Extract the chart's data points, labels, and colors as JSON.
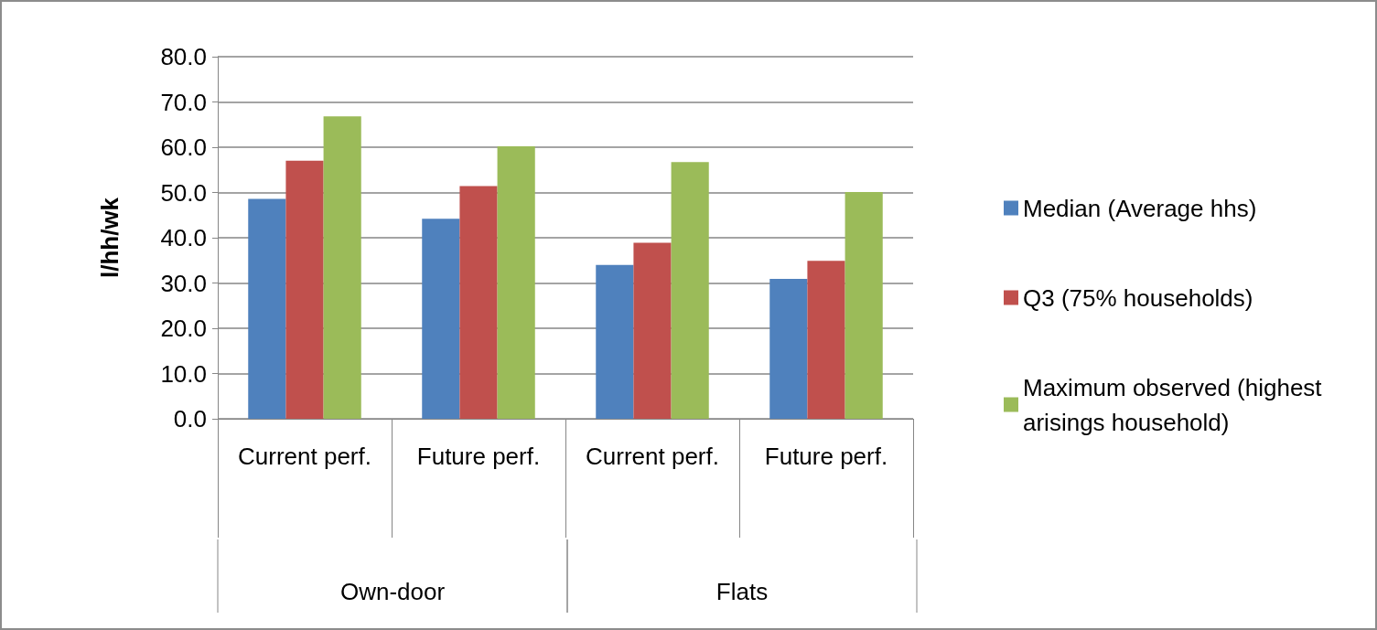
{
  "chart_data": {
    "type": "bar",
    "ylabel": "l/hh/wk",
    "categories": [
      "Current perf.",
      "Future perf.",
      "Current perf.",
      "Future perf."
    ],
    "annotations": [
      "Own-door",
      "Flats"
    ],
    "series": [
      {
        "name": "Median (Average hhs)",
        "color": "#4f81bd",
        "values": [
          48.6,
          44.2,
          34.0,
          30.9
        ]
      },
      {
        "name": "Q3 (75% households)",
        "color": "#c0504d",
        "values": [
          57.0,
          51.4,
          38.9,
          34.9
        ]
      },
      {
        "name": "Maximum observed (highest arisings household)",
        "color": "#9bbb59",
        "values": [
          66.8,
          60.2,
          56.7,
          50.1
        ]
      }
    ],
    "ylim": [
      0,
      80
    ],
    "yticks": [
      {
        "value": 0,
        "label": "0.0"
      },
      {
        "value": 10,
        "label": "10.0"
      },
      {
        "value": 20,
        "label": "20.0"
      },
      {
        "value": 30,
        "label": "30.0"
      },
      {
        "value": 40,
        "label": "40.0"
      },
      {
        "value": 50,
        "label": "50.0"
      },
      {
        "value": 60,
        "label": "60.0"
      },
      {
        "value": 70,
        "label": "70.0"
      },
      {
        "value": 80,
        "label": "80.0"
      }
    ],
    "grid": "y",
    "legend": "right"
  }
}
